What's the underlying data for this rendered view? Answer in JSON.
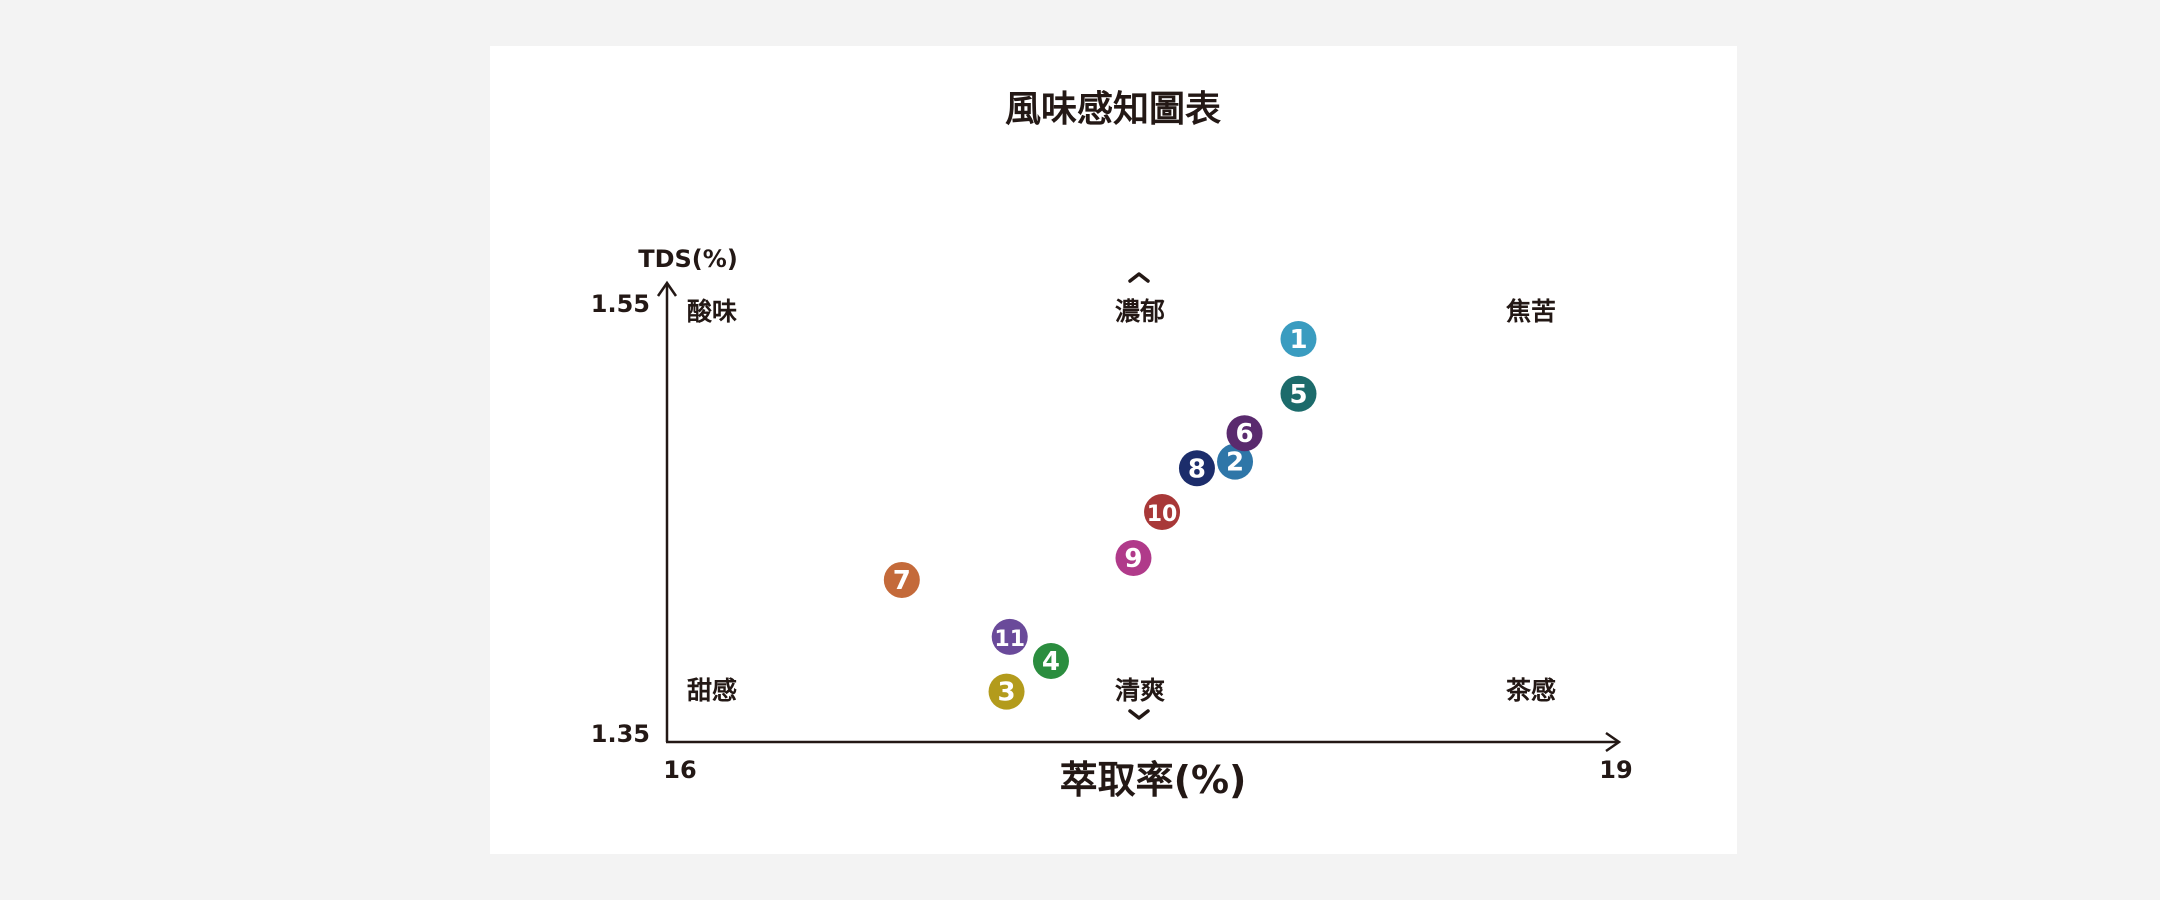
{
  "chart_data": {
    "type": "scatter",
    "title": "風味感知圖表",
    "xlabel": "萃取率(%)",
    "ylabel": "TDS(%)",
    "xlim": [
      16,
      19
    ],
    "ylim": [
      1.35,
      1.55
    ],
    "x_ticks": [
      "16",
      "19"
    ],
    "y_ticks": [
      "1.35",
      "1.55"
    ],
    "grid": false,
    "legend": "none",
    "zones": {
      "top_left": "酸味",
      "top_center": "濃郁",
      "top_right": "焦苦",
      "bottom_left": "甜感",
      "bottom_center": "清爽",
      "bottom_right": "茶感"
    },
    "points": [
      {
        "label": "1",
        "x": 17.99,
        "y": 1.534,
        "color": "#3a9cc0"
      },
      {
        "label": "2",
        "x": 17.79,
        "y": 1.478,
        "color": "#2e76a8"
      },
      {
        "label": "3",
        "x": 17.07,
        "y": 1.373,
        "color": "#b39b1c"
      },
      {
        "label": "4",
        "x": 17.21,
        "y": 1.387,
        "color": "#2b8d3f"
      },
      {
        "label": "5",
        "x": 17.99,
        "y": 1.509,
        "color": "#1c6b6b"
      },
      {
        "label": "6",
        "x": 17.82,
        "y": 1.491,
        "color": "#5a2a6e"
      },
      {
        "label": "7",
        "x": 16.74,
        "y": 1.424,
        "color": "#c46a3a"
      },
      {
        "label": "8",
        "x": 17.67,
        "y": 1.475,
        "color": "#1c2d6b"
      },
      {
        "label": "9",
        "x": 17.47,
        "y": 1.434,
        "color": "#b03a8a"
      },
      {
        "label": "10",
        "x": 17.56,
        "y": 1.455,
        "color": "#a83838"
      },
      {
        "label": "11",
        "x": 17.08,
        "y": 1.398,
        "color": "#6a4a9a"
      }
    ]
  }
}
